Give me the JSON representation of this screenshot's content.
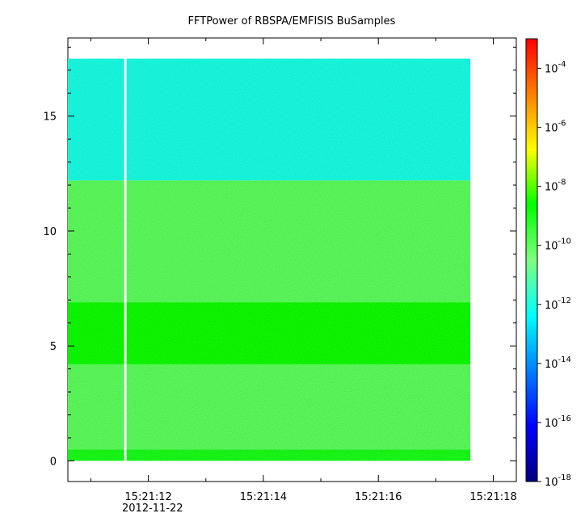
{
  "chart_data": {
    "type": "heatmap",
    "title": "FFTPower of RBSPA/EMFISIS  BuSamples",
    "xlabel": "",
    "ylabel": "",
    "x_ticks": [
      "15:21:12",
      "15:21:14",
      "15:21:16",
      "15:21:18"
    ],
    "x_tick_sublabel": "2012-11-22",
    "xlim": [
      "15:21:10.6",
      "15:21:18.4"
    ],
    "x_data_range": [
      "15:21:10.6",
      "15:21:17.6"
    ],
    "gap_at": "15:21:11.6",
    "y_ticks": [
      0,
      5,
      10,
      15
    ],
    "ylim": [
      -0.9,
      18.4
    ],
    "y_data_range": [
      0,
      17.5
    ],
    "colorbar": {
      "scale": "log",
      "range": [
        1e-18,
        0.001
      ],
      "ticks": [
        {
          "base": "10",
          "exp": "-4",
          "value": 0.0001
        },
        {
          "base": "10",
          "exp": "-6",
          "value": 1e-06
        },
        {
          "base": "10",
          "exp": "-8",
          "value": 1e-08
        },
        {
          "base": "10",
          "exp": "-10",
          "value": 1e-10
        },
        {
          "base": "10",
          "exp": "-12",
          "value": 1e-12
        },
        {
          "base": "10",
          "exp": "-14",
          "value": 1e-14
        },
        {
          "base": "10",
          "exp": "-16",
          "value": 1e-16
        },
        {
          "base": "10",
          "exp": "-18",
          "value": 1e-18
        }
      ],
      "colors": [
        "#00007f",
        "#0000ff",
        "#007fff",
        "#00ffff",
        "#7fff7f",
        "#00ff00",
        "#ffff00",
        "#ff7f00",
        "#ff0000"
      ]
    },
    "bands": [
      {
        "y_from": 0.0,
        "y_to": 0.5,
        "power": 1e-09
      },
      {
        "y_from": 0.5,
        "y_to": 4.2,
        "power": 1e-10
      },
      {
        "y_from": 4.2,
        "y_to": 6.9,
        "power": 3e-09
      },
      {
        "y_from": 6.9,
        "y_to": 12.2,
        "power": 1e-10
      },
      {
        "y_from": 12.2,
        "y_to": 17.5,
        "power": 1e-12
      }
    ]
  }
}
